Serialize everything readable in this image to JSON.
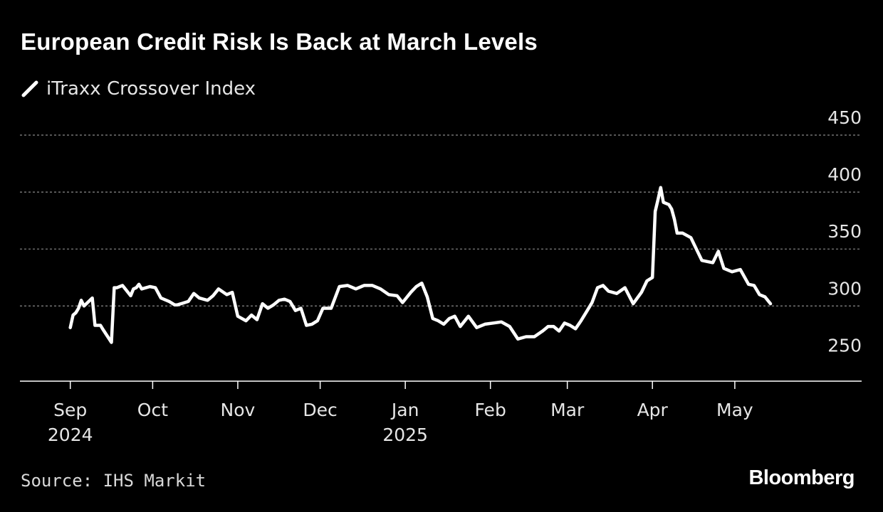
{
  "title": "European Credit Risk Is Back at March Levels",
  "source": "Source: IHS Markit",
  "brand": "Bloomberg",
  "colors": {
    "background": "#000000",
    "line": "#ffffff",
    "grid": "#8a8a8a",
    "axis": "#ffffff",
    "text": "#ffffff"
  },
  "chart_data": {
    "type": "line",
    "title": "European Credit Risk Is Back at March Levels",
    "xlabel": "",
    "ylabel": "",
    "ylim": [
      234,
      450
    ],
    "xlim": [
      "2024-08-23",
      "2025-06-04"
    ],
    "y_ticks": [
      250,
      300,
      350,
      400,
      450
    ],
    "y_axis_side": "right",
    "grid": "horizontal dotted",
    "legend_placement": "top-left",
    "x_ticks": [
      {
        "date": "2024-09-01",
        "label": "Sep",
        "year": "2024"
      },
      {
        "date": "2024-10-01",
        "label": "Oct",
        "year": ""
      },
      {
        "date": "2024-11-01",
        "label": "Nov",
        "year": ""
      },
      {
        "date": "2024-12-01",
        "label": "Dec",
        "year": ""
      },
      {
        "date": "2025-01-01",
        "label": "Jan",
        "year": "2025"
      },
      {
        "date": "2025-02-01",
        "label": "Feb",
        "year": ""
      },
      {
        "date": "2025-03-01",
        "label": "Mar",
        "year": ""
      },
      {
        "date": "2025-04-01",
        "label": "Apr",
        "year": ""
      },
      {
        "date": "2025-05-01",
        "label": "May",
        "year": ""
      }
    ],
    "series": [
      {
        "name": "iTraxx Crossover Index",
        "color": "#ffffff",
        "x": [
          "2024-09-01",
          "2024-09-02",
          "2024-09-03",
          "2024-09-04",
          "2024-09-05",
          "2024-09-06",
          "2024-09-09",
          "2024-09-10",
          "2024-09-11",
          "2024-09-12",
          "2024-09-13",
          "2024-09-16",
          "2024-09-17",
          "2024-09-18",
          "2024-09-19",
          "2024-09-20",
          "2024-09-23",
          "2024-09-24",
          "2024-09-25",
          "2024-09-26",
          "2024-09-27",
          "2024-09-30",
          "2024-10-02",
          "2024-10-04",
          "2024-10-07",
          "2024-10-09",
          "2024-10-10",
          "2024-10-14",
          "2024-10-16",
          "2024-10-18",
          "2024-10-21",
          "2024-10-23",
          "2024-10-25",
          "2024-10-28",
          "2024-10-30",
          "2024-11-01",
          "2024-11-04",
          "2024-11-06",
          "2024-11-08",
          "2024-11-10",
          "2024-11-12",
          "2024-11-14",
          "2024-11-16",
          "2024-11-18",
          "2024-11-20",
          "2024-11-22",
          "2024-11-24",
          "2024-11-26",
          "2024-11-28",
          "2024-11-30",
          "2024-12-02",
          "2024-12-05",
          "2024-12-08",
          "2024-12-11",
          "2024-12-14",
          "2024-12-17",
          "2024-12-20",
          "2024-12-23",
          "2024-12-26",
          "2024-12-29",
          "2024-12-31",
          "2025-01-03",
          "2025-01-05",
          "2025-01-07",
          "2025-01-09",
          "2025-01-11",
          "2025-01-13",
          "2025-01-15",
          "2025-01-17",
          "2025-01-19",
          "2025-01-21",
          "2025-01-24",
          "2025-01-27",
          "2025-01-30",
          "2025-02-02",
          "2025-02-05",
          "2025-02-08",
          "2025-02-11",
          "2025-02-14",
          "2025-02-17",
          "2025-02-20",
          "2025-02-22",
          "2025-02-24",
          "2025-02-26",
          "2025-02-28",
          "2025-03-02",
          "2025-03-04",
          "2025-03-06",
          "2025-03-08",
          "2025-03-10",
          "2025-03-12",
          "2025-03-14",
          "2025-03-16",
          "2025-03-19",
          "2025-03-22",
          "2025-03-25",
          "2025-03-28",
          "2025-03-30",
          "2025-04-01",
          "2025-04-02",
          "2025-04-03",
          "2025-04-04",
          "2025-04-05",
          "2025-04-07",
          "2025-04-08",
          "2025-04-09",
          "2025-04-10",
          "2025-04-12",
          "2025-04-15",
          "2025-04-19",
          "2025-04-23",
          "2025-04-25",
          "2025-04-27",
          "2025-04-30",
          "2025-05-03",
          "2025-05-06",
          "2025-05-08",
          "2025-05-10",
          "2025-05-12",
          "2025-05-14"
        ],
        "values": [
          281,
          292,
          294,
          298,
          305,
          300,
          307,
          283,
          283,
          283,
          279,
          268,
          316,
          316,
          317,
          318,
          309,
          315,
          316,
          319,
          315,
          317,
          316,
          307,
          304,
          301,
          301,
          304,
          311,
          307,
          305,
          309,
          315,
          310,
          312,
          291,
          287,
          292,
          288,
          302,
          298,
          301,
          305,
          306,
          304,
          296,
          298,
          283,
          284,
          287,
          298,
          298,
          317,
          318,
          315,
          318,
          318,
          315,
          310,
          309,
          303,
          312,
          317,
          320,
          308,
          289,
          287,
          284,
          289,
          291,
          282,
          291,
          281,
          284,
          285,
          286,
          282,
          271,
          273,
          273,
          278,
          282,
          282,
          278,
          285,
          283,
          280,
          287,
          295,
          303,
          316,
          318,
          313,
          311,
          316,
          302,
          312,
          322,
          325,
          383,
          393,
          404,
          391,
          389,
          385,
          376,
          364,
          364,
          360,
          340,
          338,
          348,
          333,
          330,
          332,
          319,
          318,
          310,
          308,
          302
        ]
      }
    ]
  },
  "legend": {
    "label": "iTraxx Crossover Index",
    "icon": "line-swatch-icon"
  }
}
